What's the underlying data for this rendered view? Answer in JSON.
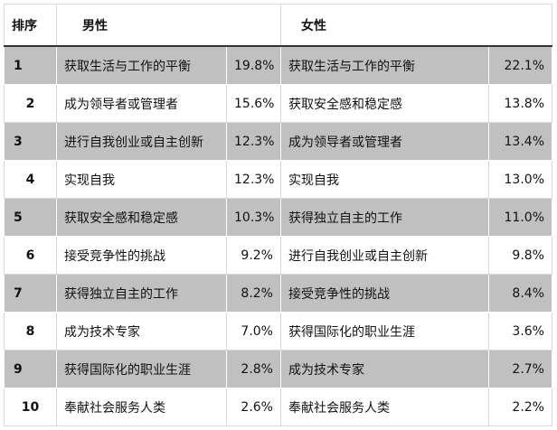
{
  "header": {
    "rank": "排序",
    "male": "男性",
    "female": "女性"
  },
  "rows": [
    [
      "1",
      "获取生活与工作的平衡",
      "19.8%",
      "获取生活与工作的平衡",
      "22.1%"
    ],
    [
      "2",
      "成为领导者或管理者",
      "15.6%",
      "获取安全感和稳定感",
      "13.8%"
    ],
    [
      "3",
      "进行自我创业或自主创新",
      "12.3%",
      "成为领导者或管理者",
      "13.4%"
    ],
    [
      "4",
      "实现自我",
      "12.3%",
      "实现自我",
      "13.0%"
    ],
    [
      "5",
      "获取安全感和稳定感",
      "10.3%",
      "获得独立自主的工作",
      "11.0%"
    ],
    [
      "6",
      "接受竞争性的挑战",
      "9.2%",
      "进行自我创业或自主创新",
      "9.8%"
    ],
    [
      "7",
      "获得独立自主的工作",
      "8.2%",
      "接受竞争性的挑战",
      "8.4%"
    ],
    [
      "8",
      "成为技术专家",
      "7.0%",
      "获得国际化的职业生涯",
      "3.6%"
    ],
    [
      "9",
      "获得国际化的职业生涯",
      "2.8%",
      "成为技术专家",
      "2.7%"
    ],
    [
      "10",
      "奉献社会服务人类",
      "2.6%",
      "奉献社会服务人类",
      "2.2%"
    ]
  ]
}
